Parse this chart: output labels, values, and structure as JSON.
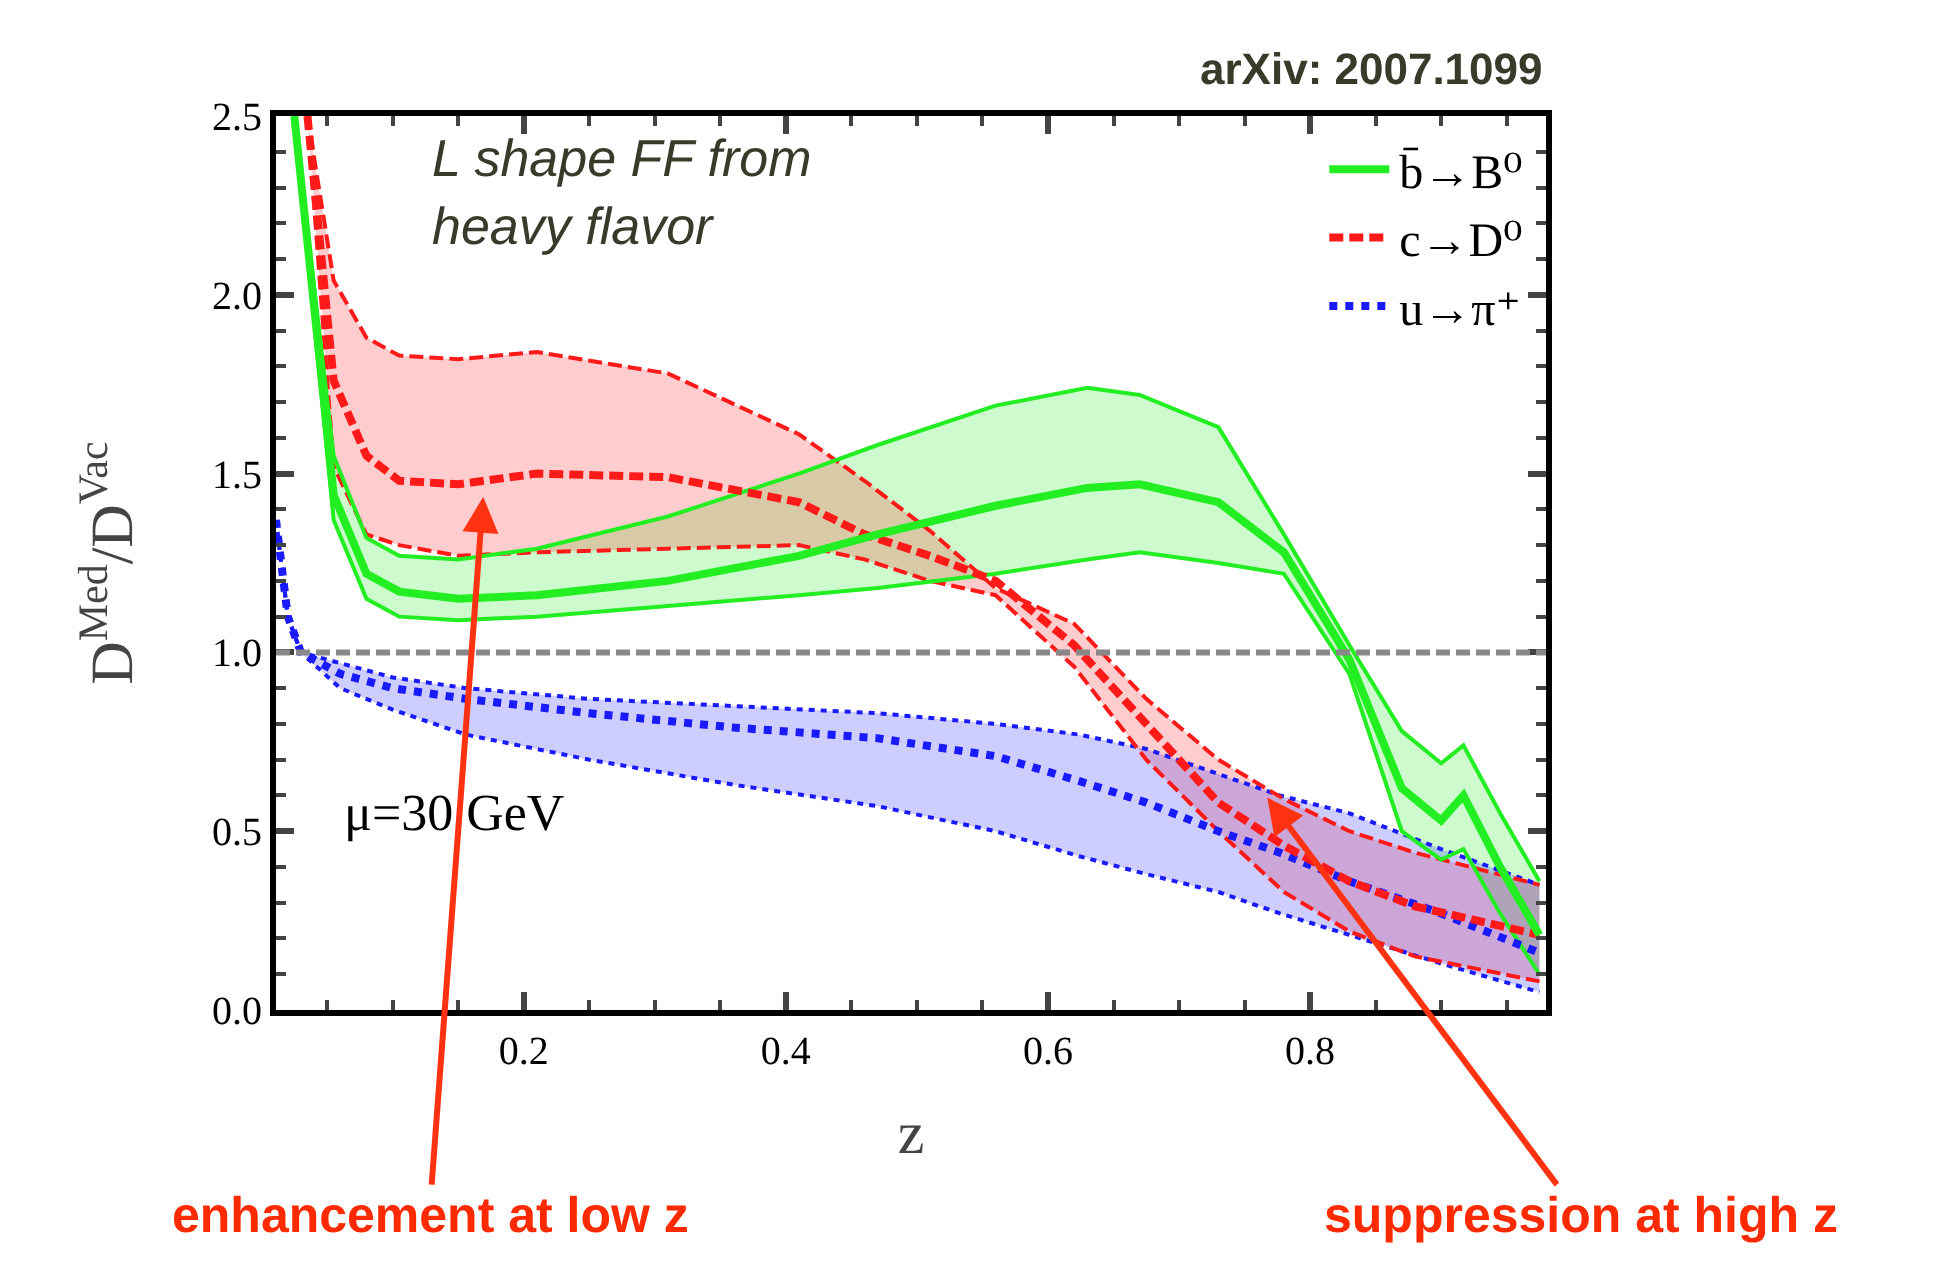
{
  "chart_data": {
    "type": "line",
    "xlabel": "z",
    "ylabel": "D$^{Med}$/D$^{Vac}$",
    "xlim": [
      0.011,
      0.98
    ],
    "ylim": [
      0,
      2.5
    ],
    "xticks": [
      0.2,
      0.4,
      0.6,
      0.8
    ],
    "yticks": [
      {
        "value": 0,
        "label": "0.0"
      },
      0.5,
      {
        "value": 1,
        "label": "1.0"
      },
      1.5,
      {
        "value": 2,
        "label": "2.0"
      },
      2.5
    ],
    "legend": "top right",
    "series": [
      {
        "name": "b̄→B⁰",
        "color": "#22ee22",
        "line_style": "solid",
        "x": [
          0.025,
          0.055,
          0.08,
          0.105,
          0.15,
          0.21,
          0.31,
          0.41,
          0.47,
          0.56,
          0.63,
          0.67,
          0.73,
          0.78,
          0.83,
          0.87,
          0.9,
          0.917,
          0.945,
          0.975
        ],
        "values": [
          2.5,
          1.44,
          1.22,
          1.17,
          1.15,
          1.16,
          1.2,
          1.27,
          1.33,
          1.41,
          1.46,
          1.47,
          1.42,
          1.28,
          0.98,
          0.62,
          0.53,
          0.6,
          0.4,
          0.21
        ],
        "upper": [
          2.5,
          1.55,
          1.32,
          1.27,
          1.26,
          1.29,
          1.38,
          1.5,
          1.58,
          1.69,
          1.74,
          1.72,
          1.63,
          1.33,
          1.02,
          0.78,
          0.69,
          0.74,
          0.55,
          0.36
        ],
        "lower": [
          2.5,
          1.37,
          1.15,
          1.1,
          1.09,
          1.1,
          1.13,
          1.16,
          1.18,
          1.22,
          1.26,
          1.28,
          1.25,
          1.22,
          0.94,
          0.5,
          0.42,
          0.45,
          0.27,
          0.1
        ]
      },
      {
        "name": "c→D⁰",
        "color": "#ff1a1a",
        "line_style": "dashed",
        "x": [
          0.035,
          0.055,
          0.08,
          0.105,
          0.15,
          0.21,
          0.31,
          0.41,
          0.46,
          0.51,
          0.56,
          0.62,
          0.675,
          0.73,
          0.78,
          0.83,
          0.88,
          0.975
        ],
        "values": [
          2.5,
          1.76,
          1.55,
          1.48,
          1.47,
          1.5,
          1.49,
          1.42,
          1.33,
          1.27,
          1.2,
          1.02,
          0.8,
          0.58,
          0.46,
          0.36,
          0.29,
          0.21
        ],
        "upper": [
          2.5,
          2.04,
          1.88,
          1.83,
          1.82,
          1.84,
          1.78,
          1.61,
          1.48,
          1.34,
          1.18,
          1.08,
          0.87,
          0.7,
          0.59,
          0.5,
          0.44,
          0.35
        ],
        "lower": [
          2.5,
          1.52,
          1.33,
          1.3,
          1.27,
          1.28,
          1.29,
          1.3,
          1.26,
          1.2,
          1.16,
          0.96,
          0.7,
          0.5,
          0.33,
          0.22,
          0.15,
          0.08
        ]
      },
      {
        "name": "u→π⁺",
        "color": "#1a1aff",
        "line_style": "dotted",
        "x": [
          0.011,
          0.02,
          0.03,
          0.06,
          0.1,
          0.156,
          0.25,
          0.36,
          0.47,
          0.56,
          0.624,
          0.675,
          0.73,
          0.777,
          0.83,
          0.9,
          0.975
        ],
        "values": [
          1.37,
          1.1,
          1.0,
          0.94,
          0.9,
          0.87,
          0.83,
          0.79,
          0.76,
          0.71,
          0.64,
          0.58,
          0.5,
          0.44,
          0.36,
          0.27,
          0.16
        ],
        "upper": [
          1.37,
          1.1,
          1.0,
          0.97,
          0.93,
          0.9,
          0.87,
          0.85,
          0.83,
          0.8,
          0.77,
          0.73,
          0.66,
          0.6,
          0.55,
          0.45,
          0.35
        ],
        "lower": [
          1.37,
          1.1,
          1.0,
          0.9,
          0.84,
          0.77,
          0.7,
          0.63,
          0.57,
          0.5,
          0.43,
          0.38,
          0.33,
          0.27,
          0.21,
          0.13,
          0.05
        ]
      },
      {
        "color": "#22ee22",
        "line_style": "solid",
        "x": [
          0.025,
          0.055,
          0.08,
          0.105,
          0.15,
          0.21,
          0.31,
          0.41,
          0.47,
          0.56,
          0.63,
          0.67,
          0.73,
          0.78,
          0.83,
          0.87,
          0.9,
          0.917,
          0.945,
          0.975
        ],
        "values": [
          2.5,
          1.55,
          1.32,
          1.27,
          1.26,
          1.29,
          1.38,
          1.5,
          1.58,
          1.69,
          1.74,
          1.72,
          1.63,
          1.33,
          1.02,
          0.78,
          0.69,
          0.74,
          0.55,
          0.36
        ]
      },
      {
        "color": "#22ee22",
        "line_style": "solid",
        "x": [
          0.025,
          0.055,
          0.08,
          0.105,
          0.15,
          0.21,
          0.31,
          0.41,
          0.47,
          0.56,
          0.63,
          0.67,
          0.73,
          0.78,
          0.83,
          0.87,
          0.9,
          0.917,
          0.945,
          0.975
        ],
        "values": [
          2.5,
          1.37,
          1.15,
          1.1,
          1.09,
          1.1,
          1.13,
          1.16,
          1.18,
          1.22,
          1.26,
          1.28,
          1.25,
          1.22,
          0.94,
          0.5,
          0.42,
          0.45,
          0.27,
          0.1
        ]
      },
      {
        "color": "#ff1a1a",
        "line_style": "dashed",
        "x": [
          0.035,
          0.055,
          0.08,
          0.105,
          0.15,
          0.21,
          0.31,
          0.41,
          0.46,
          0.51,
          0.56,
          0.62,
          0.675,
          0.73,
          0.78,
          0.83,
          0.88,
          0.975
        ],
        "values": [
          2.5,
          2.04,
          1.88,
          1.83,
          1.82,
          1.84,
          1.78,
          1.61,
          1.48,
          1.34,
          1.18,
          1.08,
          0.87,
          0.7,
          0.59,
          0.5,
          0.44,
          0.35
        ]
      },
      {
        "color": "#ff1a1a",
        "line_style": "dashed",
        "x": [
          0.035,
          0.055,
          0.08,
          0.105,
          0.15,
          0.21,
          0.31,
          0.41,
          0.46,
          0.51,
          0.56,
          0.62,
          0.675,
          0.73,
          0.78,
          0.83,
          0.88,
          0.975
        ],
        "values": [
          2.5,
          1.52,
          1.33,
          1.3,
          1.27,
          1.28,
          1.29,
          1.3,
          1.26,
          1.2,
          1.16,
          0.96,
          0.7,
          0.5,
          0.33,
          0.22,
          0.15,
          0.08
        ]
      },
      {
        "color": "#1a1aff",
        "line_style": "dotted",
        "x": [
          0.011,
          0.02,
          0.03,
          0.06,
          0.1,
          0.156,
          0.25,
          0.36,
          0.47,
          0.56,
          0.624,
          0.675,
          0.73,
          0.777,
          0.83,
          0.9,
          0.975
        ],
        "values": [
          1.37,
          1.1,
          1.0,
          0.97,
          0.93,
          0.9,
          0.87,
          0.85,
          0.83,
          0.8,
          0.77,
          0.73,
          0.66,
          0.6,
          0.55,
          0.45,
          0.35
        ]
      },
      {
        "color": "#1a1aff",
        "line_style": "dotted",
        "x": [
          0.011,
          0.02,
          0.03,
          0.06,
          0.1,
          0.156,
          0.25,
          0.36,
          0.47,
          0.56,
          0.624,
          0.675,
          0.73,
          0.777,
          0.83,
          0.9,
          0.975
        ],
        "values": [
          1.37,
          1.1,
          1.0,
          0.9,
          0.84,
          0.77,
          0.7,
          0.63,
          0.57,
          0.5,
          0.43,
          0.38,
          0.33,
          0.27,
          0.21,
          0.13,
          0.05
        ]
      }
    ],
    "ref_lines": [
      {
        "axis": "y",
        "value": 1,
        "color": "#888888",
        "line_style": "dashed"
      }
    ],
    "annotations": [
      "arXiv: 2007.1099",
      "L shape FF from\nheavy flavor",
      "μ=30 GeV",
      {
        "text": "enhancement at low z",
        "x": 0.17,
        "y": 1.48
      },
      {
        "text": "suppression at high z",
        "x": 0.76,
        "y": 0.63
      }
    ]
  }
}
